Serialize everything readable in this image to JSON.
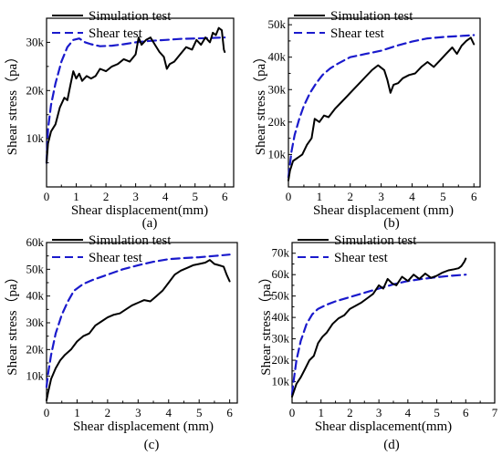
{
  "chart_data": [
    {
      "type": "line",
      "panel_label": "(a)",
      "xlabel": "Shear displacement(mm)",
      "ylabel": "Shear stress（pa）",
      "xlim": [
        0,
        6.3
      ],
      "ylim": [
        0,
        35000
      ],
      "x_ticks": [
        0,
        1,
        2,
        3,
        4,
        5,
        6
      ],
      "x_tick_labels": [
        "0",
        "1",
        "2",
        "3",
        "4",
        "5",
        "6"
      ],
      "y_ticks": [
        10000,
        20000,
        30000
      ],
      "y_tick_labels": [
        "10k",
        "20k",
        "30k"
      ],
      "legend_position": "top-left",
      "series": [
        {
          "name": "Simulation test",
          "style": "solid",
          "color": "#000000",
          "x": [
            0,
            0.05,
            0.15,
            0.3,
            0.45,
            0.6,
            0.7,
            0.8,
            0.9,
            1.0,
            1.1,
            1.2,
            1.35,
            1.5,
            1.65,
            1.8,
            2.0,
            2.2,
            2.4,
            2.6,
            2.8,
            3.0,
            3.1,
            3.2,
            3.35,
            3.5,
            3.65,
            3.8,
            3.95,
            4.05,
            4.15,
            4.3,
            4.5,
            4.7,
            4.9,
            5.05,
            5.2,
            5.35,
            5.5,
            5.6,
            5.7,
            5.8,
            5.9,
            5.97,
            6.0
          ],
          "y": [
            5000,
            9000,
            11500,
            13000,
            16500,
            18500,
            18000,
            21000,
            24000,
            22500,
            23500,
            22000,
            23000,
            22500,
            23000,
            24500,
            24000,
            25000,
            25500,
            26500,
            26000,
            27500,
            31000,
            29500,
            30500,
            31000,
            29500,
            28000,
            27000,
            24500,
            25500,
            26000,
            27500,
            29000,
            28500,
            30500,
            29500,
            31000,
            30000,
            32000,
            31500,
            33000,
            32500,
            28500,
            28000
          ]
        },
        {
          "name": "Shear test",
          "style": "dashed",
          "color": "#1a1acc",
          "x": [
            0,
            0.05,
            0.15,
            0.3,
            0.5,
            0.7,
            0.9,
            1.1,
            1.3,
            1.5,
            1.8,
            2.2,
            2.6,
            3.0,
            3.5,
            4.0,
            4.5,
            5.0,
            5.5,
            6.0
          ],
          "y": [
            5000,
            12000,
            17000,
            21500,
            26000,
            29000,
            30500,
            30800,
            30000,
            29600,
            29200,
            29300,
            29600,
            30000,
            30300,
            30500,
            30700,
            30800,
            30900,
            31000
          ]
        }
      ]
    },
    {
      "type": "line",
      "panel_label": "(b)",
      "xlabel": "Shear displacement (mm)",
      "ylabel": "Shear stress（pa）",
      "xlim": [
        0,
        6.2
      ],
      "ylim": [
        0,
        52000
      ],
      "x_ticks": [
        0,
        1,
        2,
        3,
        4,
        5,
        6
      ],
      "x_tick_labels": [
        "0",
        "1",
        "2",
        "3",
        "4",
        "5",
        "6"
      ],
      "y_ticks": [
        10000,
        20000,
        30000,
        40000,
        50000
      ],
      "y_tick_labels": [
        "10k",
        "20k",
        "30k",
        "40k",
        "50k"
      ],
      "legend_position": "top-left",
      "series": [
        {
          "name": "Simulation test",
          "style": "solid",
          "color": "#000000",
          "x": [
            0,
            0.05,
            0.15,
            0.3,
            0.45,
            0.6,
            0.75,
            0.85,
            1.0,
            1.15,
            1.3,
            1.5,
            1.7,
            1.9,
            2.1,
            2.3,
            2.5,
            2.7,
            2.9,
            3.1,
            3.2,
            3.3,
            3.4,
            3.55,
            3.7,
            3.9,
            4.1,
            4.3,
            4.5,
            4.7,
            4.9,
            5.1,
            5.3,
            5.45,
            5.6,
            5.75,
            5.9,
            6.0
          ],
          "y": [
            2000,
            5000,
            8000,
            9000,
            10000,
            13000,
            15000,
            21000,
            20000,
            22000,
            21500,
            24000,
            26000,
            28000,
            30000,
            32000,
            34000,
            36000,
            37500,
            36000,
            33000,
            29000,
            31500,
            32000,
            33500,
            34500,
            35000,
            37000,
            38500,
            37000,
            39000,
            41000,
            43000,
            41000,
            43500,
            45000,
            46000,
            44000
          ]
        },
        {
          "name": "Shear test",
          "style": "dashed",
          "color": "#1a1acc",
          "x": [
            0,
            0.1,
            0.2,
            0.35,
            0.5,
            0.7,
            0.9,
            1.1,
            1.35,
            1.6,
            2.0,
            2.5,
            3.0,
            3.5,
            4.0,
            4.5,
            5.0,
            5.5,
            6.0
          ],
          "y": [
            3000,
            11000,
            16000,
            21000,
            25000,
            29000,
            32000,
            34500,
            36500,
            38000,
            40000,
            41000,
            42000,
            43500,
            44800,
            45800,
            46200,
            46500,
            46800
          ]
        }
      ]
    },
    {
      "type": "line",
      "panel_label": "(c)",
      "xlabel": "Shear displacement (mm)",
      "ylabel": "Shear stress（pa）",
      "xlim": [
        0,
        6.25
      ],
      "ylim": [
        0,
        60000
      ],
      "x_ticks": [
        0,
        1,
        2,
        3,
        4,
        5,
        6
      ],
      "x_tick_labels": [
        "0",
        "1",
        "2",
        "3",
        "4",
        "5",
        "6"
      ],
      "y_ticks": [
        10000,
        20000,
        30000,
        40000,
        50000,
        60000
      ],
      "y_tick_labels": [
        "10k",
        "20k",
        "30k",
        "40k",
        "50k",
        "60k"
      ],
      "legend_position": "top-left",
      "series": [
        {
          "name": "Simulation test",
          "style": "solid",
          "color": "#000000",
          "x": [
            0,
            0.05,
            0.15,
            0.3,
            0.45,
            0.6,
            0.8,
            1.0,
            1.2,
            1.4,
            1.6,
            1.8,
            2.0,
            2.2,
            2.4,
            2.6,
            2.8,
            3.0,
            3.2,
            3.4,
            3.6,
            3.8,
            4.0,
            4.2,
            4.4,
            4.6,
            4.8,
            5.0,
            5.2,
            5.35,
            5.5,
            5.65,
            5.8,
            5.9,
            6.0
          ],
          "y": [
            1000,
            4000,
            9000,
            13000,
            16000,
            18000,
            20000,
            23000,
            25000,
            26000,
            29000,
            30500,
            32000,
            33000,
            33500,
            35000,
            36500,
            37500,
            38500,
            38000,
            40000,
            42000,
            45000,
            48000,
            49500,
            50500,
            51500,
            52000,
            52500,
            53500,
            52000,
            51500,
            51000,
            48000,
            45500
          ]
        },
        {
          "name": "Shear test",
          "style": "dashed",
          "color": "#1a1acc",
          "x": [
            0,
            0.05,
            0.15,
            0.3,
            0.5,
            0.7,
            0.9,
            1.2,
            1.5,
            2.0,
            2.5,
            3.0,
            3.5,
            4.0,
            4.5,
            5.0,
            5.5,
            6.0
          ],
          "y": [
            6000,
            11000,
            18000,
            26000,
            33000,
            38000,
            42000,
            44500,
            46000,
            48000,
            50000,
            51500,
            52800,
            53800,
            54200,
            54500,
            55000,
            55500
          ]
        }
      ]
    },
    {
      "type": "line",
      "panel_label": "(d)",
      "xlabel": "Shear displacement(mm)",
      "ylabel": "Shear stress（pa）",
      "xlim": [
        0,
        7
      ],
      "ylim": [
        0,
        75000
      ],
      "x_ticks": [
        0,
        1,
        2,
        3,
        4,
        5,
        6,
        7
      ],
      "x_tick_labels": [
        "0",
        "1",
        "2",
        "3",
        "4",
        "5",
        "6",
        "7"
      ],
      "y_ticks": [
        10000,
        20000,
        30000,
        40000,
        50000,
        60000,
        70000
      ],
      "y_tick_labels": [
        "10k",
        "20k",
        "30k",
        "40k",
        "50k",
        "60k",
        "70k"
      ],
      "legend_position": "top-left",
      "series": [
        {
          "name": "Simulation test",
          "style": "solid",
          "color": "#000000",
          "x": [
            0,
            0.05,
            0.15,
            0.3,
            0.45,
            0.6,
            0.75,
            0.9,
            1.05,
            1.2,
            1.4,
            1.6,
            1.8,
            2.0,
            2.2,
            2.4,
            2.6,
            2.8,
            3.0,
            3.15,
            3.3,
            3.45,
            3.6,
            3.8,
            4.0,
            4.2,
            4.4,
            4.6,
            4.8,
            5.0,
            5.2,
            5.4,
            5.6,
            5.75,
            5.85,
            5.95,
            6.0
          ],
          "y": [
            3000,
            5000,
            9000,
            12000,
            16000,
            20000,
            22000,
            28000,
            31000,
            33000,
            37000,
            39500,
            41000,
            44000,
            45500,
            47000,
            49000,
            51000,
            55000,
            53500,
            58000,
            56000,
            55000,
            59000,
            57000,
            60000,
            58000,
            60500,
            58500,
            59500,
            61000,
            62000,
            62500,
            63000,
            64000,
            66000,
            67500
          ]
        },
        {
          "name": "Shear test",
          "style": "dashed",
          "color": "#1a1acc",
          "x": [
            0,
            0.05,
            0.15,
            0.3,
            0.5,
            0.7,
            0.9,
            1.2,
            1.5,
            2.0,
            2.5,
            3.0,
            3.5,
            4.0,
            4.5,
            5.0,
            5.5,
            6.0
          ],
          "y": [
            4000,
            10000,
            20000,
            29000,
            37000,
            41500,
            44000,
            46000,
            47500,
            49500,
            51500,
            53500,
            55500,
            57000,
            58000,
            58800,
            59500,
            60000
          ]
        }
      ]
    }
  ]
}
